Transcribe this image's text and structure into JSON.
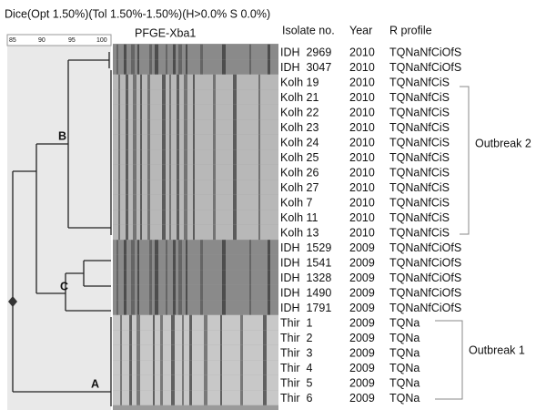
{
  "header": {
    "title": "Dice(Opt 1.50%)(Tol 1.50%-1.50%)(H>0.0% S 0.0%)",
    "scale": [
      "85",
      "90",
      "95",
      "100"
    ]
  },
  "gel_title": "PFGE-Xba1",
  "columns": [
    "Isolate no.",
    "Year",
    "R profile"
  ],
  "rows": [
    [
      "IDH  2969",
      "2010",
      "TQNaNfCiOfS"
    ],
    [
      "IDH  3047",
      "2010",
      "TQNaNfCiOfS"
    ],
    [
      "Kolh 19",
      "2010",
      "TQNaNfCiS"
    ],
    [
      "Kolh 21",
      "2010",
      "TQNaNfCiS"
    ],
    [
      "Kolh 22",
      "2010",
      "TQNaNfCiS"
    ],
    [
      "Kolh 23",
      "2010",
      "TQNaNfCiS"
    ],
    [
      "Kolh 24",
      "2010",
      "TQNaNfCiS"
    ],
    [
      "Kolh 25",
      "2010",
      "TQNaNfCiS"
    ],
    [
      "Kolh 26",
      "2010",
      "TQNaNfCiS"
    ],
    [
      "Kolh 27",
      "2010",
      "TQNaNfCiS"
    ],
    [
      "Kolh 7",
      "2010",
      "TQNaNfCiS"
    ],
    [
      "Kolh 11",
      "2010",
      "TQNaNfCiS"
    ],
    [
      "Kolh 13",
      "2010",
      "TQNaNfCiS"
    ],
    [
      "IDH  1529",
      "2009",
      "TQNaNfCiOfS"
    ],
    [
      "IDH  1541",
      "2009",
      "TQNaNfCiOfS"
    ],
    [
      "IDH  1328",
      "2009",
      "TQNaNfCiOfS"
    ],
    [
      "IDH  1490",
      "2009",
      "TQNaNfCiOfS"
    ],
    [
      "IDH  1791",
      "2009",
      "TQNaNfCiOfS"
    ],
    [
      "Thir  1",
      "2009",
      "TQNa"
    ],
    [
      "Thir  2",
      "2009",
      "TQNa"
    ],
    [
      "Thir  3",
      "2009",
      "TQNa"
    ],
    [
      "Thir  4",
      "2009",
      "TQNa"
    ],
    [
      "Thir  5",
      "2009",
      "TQNa"
    ],
    [
      "Thir  6",
      "2009",
      "TQNa"
    ]
  ],
  "clades": [
    "A",
    "B",
    "C"
  ],
  "outbreaks": [
    "Outbreak 2",
    "Outbreak 1"
  ]
}
